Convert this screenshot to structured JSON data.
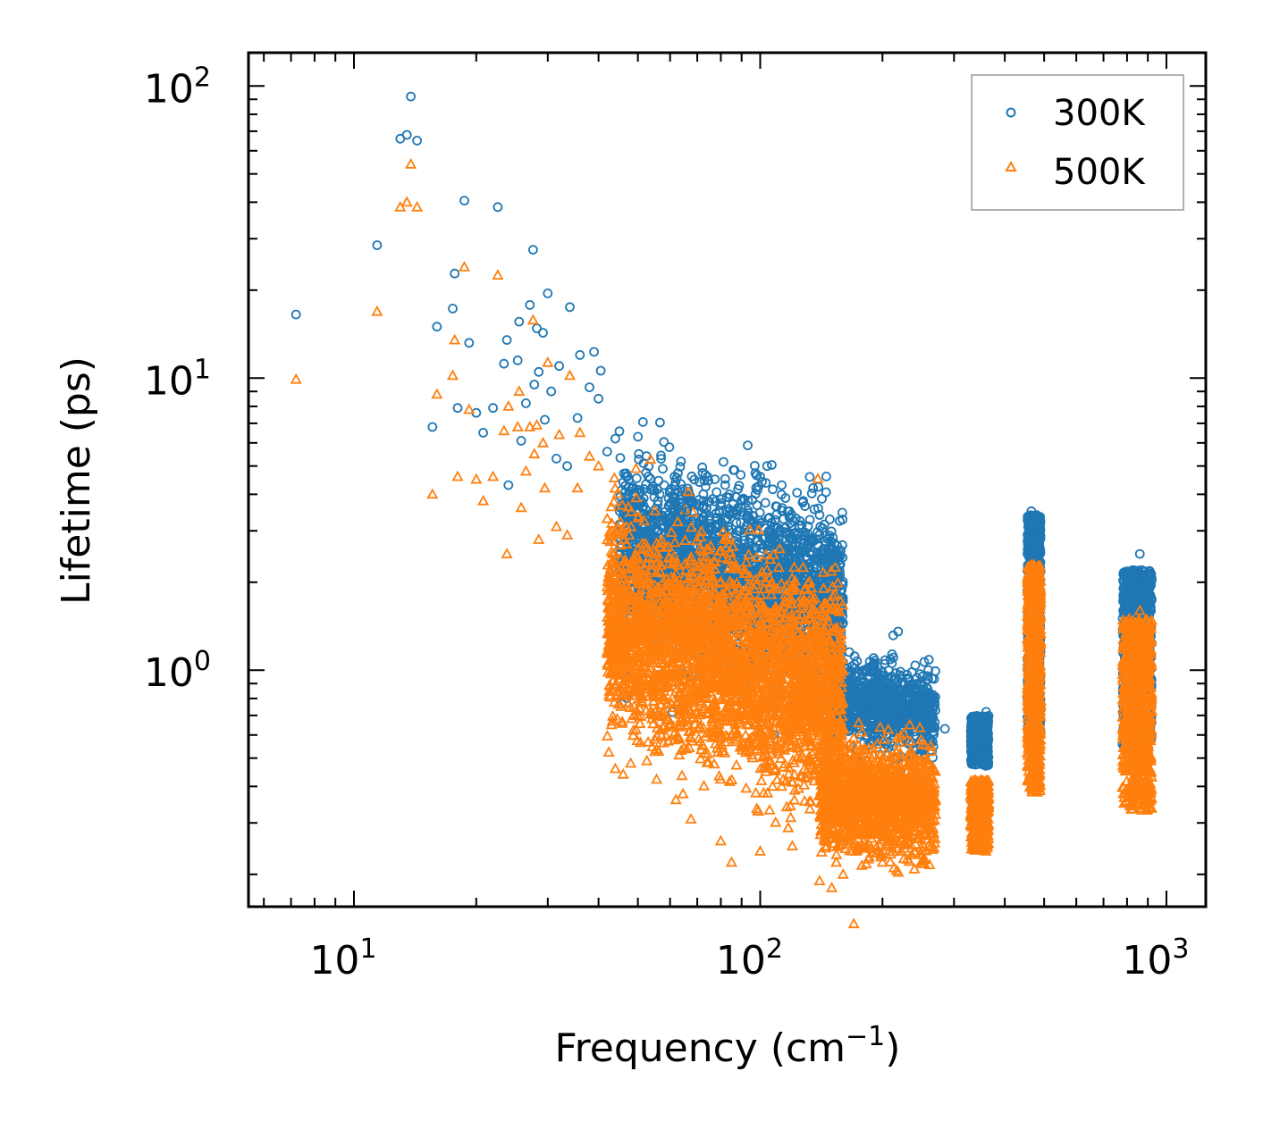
{
  "chart_data": {
    "type": "scatter",
    "title": "",
    "xlabel": "Frequency (cm",
    "xlabel_sup": "−1",
    "xlabel_suffix": ")",
    "ylabel": "Lifetime (ps)",
    "xscale": "log",
    "yscale": "log",
    "xlim": [
      5.5,
      1250
    ],
    "ylim": [
      0.155,
      130
    ],
    "x_ticks": [
      {
        "base": "10",
        "exp": "1"
      },
      {
        "base": "10",
        "exp": "2"
      },
      {
        "base": "10",
        "exp": "3"
      }
    ],
    "y_ticks": [
      {
        "base": "10",
        "exp": "0"
      },
      {
        "base": "10",
        "exp": "1"
      },
      {
        "base": "10",
        "exp": "2"
      }
    ],
    "legend_position": "top-right",
    "series": [
      {
        "name": "300K",
        "color": "#1f77b4",
        "marker": "circle",
        "points": [
          [
            7.2,
            16.5
          ],
          [
            11.4,
            28.5
          ],
          [
            13.0,
            66
          ],
          [
            13.5,
            68
          ],
          [
            13.8,
            92
          ],
          [
            14.3,
            65
          ],
          [
            15.6,
            6.8
          ],
          [
            16.0,
            15
          ],
          [
            17.5,
            17.3
          ],
          [
            17.7,
            22.8
          ],
          [
            18.0,
            7.9
          ],
          [
            18.7,
            40.5
          ],
          [
            19.2,
            13.2
          ],
          [
            20.0,
            7.6
          ],
          [
            20.8,
            6.5
          ],
          [
            22.0,
            7.9
          ],
          [
            22.6,
            38.5
          ],
          [
            23.4,
            11.2
          ],
          [
            23.8,
            13.5
          ],
          [
            24.0,
            4.3
          ],
          [
            25.3,
            11.5
          ],
          [
            25.5,
            15.6
          ],
          [
            25.8,
            6.1
          ],
          [
            26.5,
            8.2
          ],
          [
            27.1,
            17.8
          ],
          [
            27.6,
            27.5
          ],
          [
            27.8,
            9.5
          ],
          [
            28.2,
            14.8
          ],
          [
            28.5,
            10.5
          ],
          [
            29.2,
            14.3
          ],
          [
            29.5,
            7.2
          ],
          [
            30.0,
            19.5
          ],
          [
            30.6,
            9.0
          ],
          [
            31.5,
            5.3
          ],
          [
            32.0,
            11.0
          ],
          [
            33.5,
            5.0
          ],
          [
            34.0,
            17.5
          ],
          [
            35.5,
            7.3
          ],
          [
            36.0,
            12.0
          ],
          [
            38.0,
            9.3
          ],
          [
            39.0,
            12.3
          ],
          [
            40.0,
            8.5
          ],
          [
            40.5,
            10.6
          ],
          [
            42.0,
            5.6
          ],
          [
            44.0,
            6.2
          ],
          [
            46.0,
            4.4
          ],
          [
            50.0,
            6.3
          ],
          [
            53.0,
            4.6
          ],
          [
            58.0,
            4.3
          ],
          [
            61.0,
            3.6
          ],
          [
            66.0,
            3.5
          ],
          [
            82.0,
            4.3
          ],
          [
            84.0,
            4.0
          ],
          [
            88.0,
            3.5
          ],
          [
            100.0,
            4.6
          ],
          [
            104.0,
            5.0
          ],
          [
            113.0,
            4.3
          ],
          [
            118.0,
            3.5
          ],
          [
            135.0,
            4.2
          ],
          [
            140.0,
            3.4
          ],
          [
            150.0,
            2.4
          ],
          [
            160.0,
            1.45
          ],
          [
            180.0,
            1.0
          ],
          [
            200.0,
            0.98
          ],
          [
            220.0,
            0.85
          ],
          [
            250.0,
            0.78
          ],
          [
            265.0,
            0.72
          ],
          [
            285.0,
            0.63
          ],
          [
            330.0,
            0.62
          ],
          [
            350.0,
            0.68
          ],
          [
            360.0,
            0.72
          ],
          [
            465.0,
            3.5
          ],
          [
            470.0,
            3.1
          ],
          [
            480.0,
            2.8
          ],
          [
            785.0,
            1.75
          ],
          [
            860.0,
            2.5
          ],
          [
            870.0,
            2.2
          ],
          [
            905.0,
            1.7
          ]
        ]
      },
      {
        "name": "500K",
        "color": "#ff7f0e",
        "marker": "triangle",
        "points": [
          [
            7.2,
            9.9
          ],
          [
            11.4,
            16.9
          ],
          [
            13.0,
            38.5
          ],
          [
            13.5,
            40
          ],
          [
            13.8,
            54
          ],
          [
            14.3,
            38.5
          ],
          [
            15.6,
            4.0
          ],
          [
            16.0,
            8.8
          ],
          [
            17.5,
            10.2
          ],
          [
            17.7,
            13.5
          ],
          [
            18.0,
            4.6
          ],
          [
            18.7,
            24
          ],
          [
            19.2,
            7.8
          ],
          [
            20.0,
            4.5
          ],
          [
            20.8,
            3.8
          ],
          [
            22.0,
            4.6
          ],
          [
            22.6,
            22.5
          ],
          [
            23.4,
            6.6
          ],
          [
            23.8,
            2.5
          ],
          [
            24.0,
            8.0
          ],
          [
            25.3,
            6.8
          ],
          [
            25.5,
            9.0
          ],
          [
            25.8,
            3.6
          ],
          [
            26.5,
            4.8
          ],
          [
            27.1,
            6.8
          ],
          [
            27.6,
            15.8
          ],
          [
            27.8,
            5.5
          ],
          [
            28.2,
            6.9
          ],
          [
            28.5,
            2.8
          ],
          [
            29.2,
            6.0
          ],
          [
            29.5,
            4.2
          ],
          [
            30.0,
            11.3
          ],
          [
            31.5,
            3.1
          ],
          [
            32.0,
            6.4
          ],
          [
            33.5,
            2.9
          ],
          [
            34.0,
            10.2
          ],
          [
            35.5,
            4.2
          ],
          [
            36.0,
            6.5
          ],
          [
            38.0,
            5.4
          ],
          [
            40.0,
            5.0
          ],
          [
            42.0,
            3.3
          ],
          [
            44.0,
            0.46
          ],
          [
            46.0,
            0.44
          ],
          [
            48.0,
            0.48
          ],
          [
            55.0,
            0.58
          ],
          [
            62.0,
            0.36
          ],
          [
            80.0,
            0.26
          ],
          [
            85.0,
            0.22
          ],
          [
            100.0,
            0.24
          ],
          [
            120.0,
            0.25
          ],
          [
            140.0,
            0.19
          ],
          [
            150.0,
            0.18
          ],
          [
            160.0,
            0.2
          ],
          [
            200.0,
            0.22
          ],
          [
            240.0,
            0.24
          ],
          [
            270.0,
            0.45
          ],
          [
            330.0,
            0.32
          ],
          [
            350.0,
            0.42
          ],
          [
            360.0,
            0.35
          ],
          [
            465.0,
            2.3
          ],
          [
            470.0,
            1.8
          ],
          [
            480.0,
            0.4
          ],
          [
            785.0,
            1.2
          ],
          [
            860.0,
            1.6
          ],
          [
            870.0,
            0.4
          ],
          [
            905.0,
            0.35
          ]
        ]
      }
    ]
  }
}
